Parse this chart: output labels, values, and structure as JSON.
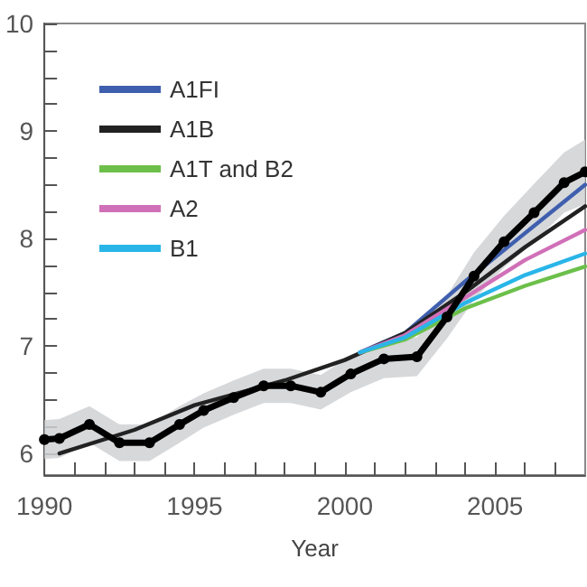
{
  "chart_data": {
    "type": "line",
    "xlabel": "Year",
    "xlim": [
      1990,
      2008
    ],
    "xticks": [
      1990,
      {
        "value": 1991,
        "label": null
      },
      {
        "value": 1992,
        "label": null
      },
      {
        "value": 1993,
        "label": null
      },
      {
        "value": 1994,
        "label": null
      },
      1995,
      {
        "value": 1996,
        "label": null
      },
      {
        "value": 1997,
        "label": null
      },
      {
        "value": 1998,
        "label": null
      },
      {
        "value": 1999,
        "label": null
      },
      2000,
      {
        "value": 2001,
        "label": null
      },
      {
        "value": 2002,
        "label": null
      },
      {
        "value": 2003,
        "label": null
      },
      {
        "value": 2004,
        "label": null
      },
      2005,
      {
        "value": 2006,
        "label": null
      },
      {
        "value": 2007,
        "label": null
      }
    ],
    "ylim": [
      5.8,
      10
    ],
    "yticks": [
      6,
      {
        "value": 6.25,
        "label": null
      },
      {
        "value": 6.5,
        "label": null
      },
      {
        "value": 6.75,
        "label": null
      },
      7,
      {
        "value": 7.25,
        "label": null
      },
      {
        "value": 7.5,
        "label": null
      },
      {
        "value": 7.75,
        "label": null
      },
      8,
      {
        "value": 8.25,
        "label": null
      },
      {
        "value": 8.5,
        "label": null
      },
      {
        "value": 8.75,
        "label": null
      },
      9,
      {
        "value": 9.25,
        "label": null
      },
      {
        "value": 9.5,
        "label": null
      },
      {
        "value": 9.75,
        "label": null
      },
      10
    ],
    "grid": false,
    "legend": "top left",
    "line_style": "solid",
    "series": [
      {
        "color": "#000000",
        "marker": "circle",
        "x": [
          1990,
          1990.5,
          1991.5,
          1992.5,
          1993.5,
          1994.5,
          1995.3,
          1996.3,
          1997.3,
          1998.2,
          1999.2,
          2000.2,
          2001.3,
          2002.4,
          2003.4,
          2004.3,
          2005.3,
          2006.3,
          2007.3,
          2008
        ],
        "values": [
          6.13,
          6.14,
          6.27,
          6.1,
          6.1,
          6.27,
          6.4,
          6.52,
          6.63,
          6.63,
          6.57,
          6.74,
          6.88,
          6.9,
          7.27,
          7.65,
          7.97,
          8.24,
          8.52,
          8.62
        ],
        "lower": [
          5.95,
          5.96,
          6.1,
          5.93,
          5.93,
          6.1,
          6.24,
          6.36,
          6.47,
          6.47,
          6.41,
          6.57,
          6.7,
          6.72,
          7.07,
          7.43,
          7.73,
          7.97,
          8.24,
          8.32
        ],
        "upper": [
          6.31,
          6.32,
          6.44,
          6.27,
          6.27,
          6.44,
          6.56,
          6.68,
          6.79,
          6.79,
          6.73,
          6.91,
          7.06,
          7.08,
          7.47,
          7.87,
          8.21,
          8.51,
          8.8,
          8.92
        ]
      },
      {
        "name": "A1FI",
        "color": "#3f5fae",
        "x": [
          2000.5,
          2002,
          2004,
          2006,
          2008
        ],
        "values": [
          6.94,
          7.12,
          7.6,
          8.05,
          8.5
        ]
      },
      {
        "name": "A1B",
        "color": "#222222",
        "x": [
          1990.5,
          1993,
          1995,
          1998,
          2000,
          2002,
          2004,
          2006,
          2008
        ],
        "values": [
          6.0,
          6.22,
          6.45,
          6.68,
          6.87,
          7.12,
          7.5,
          7.92,
          8.3
        ]
      },
      {
        "name": "A1T and B2",
        "color": "#6cc04a",
        "x": [
          2000.5,
          2002,
          2004,
          2006,
          2008
        ],
        "values": [
          6.94,
          7.06,
          7.35,
          7.56,
          7.74
        ]
      },
      {
        "name": "A2",
        "color": "#d070b8",
        "x": [
          2000.5,
          2002,
          2004,
          2006,
          2008
        ],
        "values": [
          6.94,
          7.1,
          7.45,
          7.8,
          8.08
        ]
      },
      {
        "name": "B1",
        "color": "#29b5e8",
        "x": [
          2000.5,
          2002,
          2004,
          2006,
          2008
        ],
        "values": [
          6.94,
          7.08,
          7.4,
          7.66,
          7.86
        ]
      }
    ]
  }
}
